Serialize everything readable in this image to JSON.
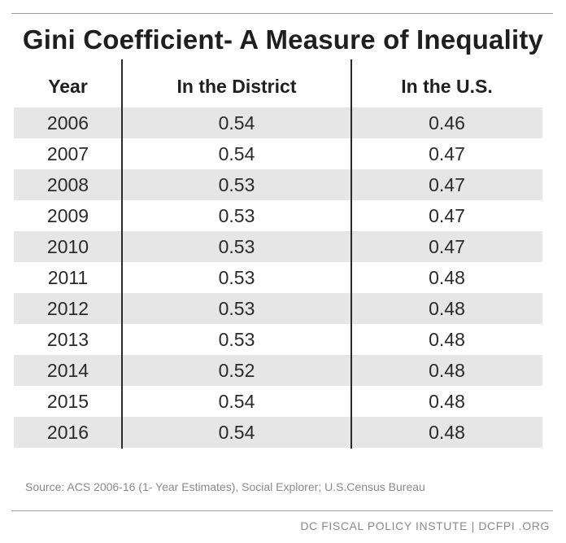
{
  "chart_data": {
    "type": "table",
    "title": "Gini Coefficient- A Measure of Inequality",
    "columns": [
      "Year",
      "In the District",
      "In the U.S."
    ],
    "rows": [
      [
        "2006",
        "0.54",
        "0.46"
      ],
      [
        "2007",
        "0.54",
        "0.47"
      ],
      [
        "2008",
        "0.53",
        "0.47"
      ],
      [
        "2009",
        "0.53",
        "0.47"
      ],
      [
        "2010",
        "0.53",
        "0.47"
      ],
      [
        "2011",
        "0.53",
        "0.48"
      ],
      [
        "2012",
        "0.53",
        "0.48"
      ],
      [
        "2013",
        "0.53",
        "0.48"
      ],
      [
        "2014",
        "0.52",
        "0.48"
      ],
      [
        "2015",
        "0.54",
        "0.48"
      ],
      [
        "2016",
        "0.54",
        "0.48"
      ]
    ],
    "source": "Source: ACS 2006-16 (1- Year Estimates), Social Explorer; U.S.Census Bureau",
    "brand": "DC FISCAL POLICY INSTUTE  |  DCFPI .ORG"
  },
  "colors": {
    "row_shade": "#e6e6e6",
    "text": "#2a2a2a",
    "muted_text": "#8a8a8a",
    "divider": "#2a2a2a"
  }
}
